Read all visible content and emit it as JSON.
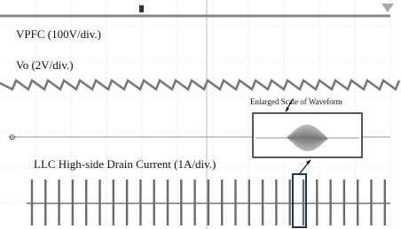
{
  "labels": {
    "vpfc": "VPFC (100V/div.)",
    "vo": "Vo (2V/div.)",
    "enlarged": "Enlarged Scale of Waveform",
    "drain": "LLC High-side Drain Current (1A/div.)"
  }
}
